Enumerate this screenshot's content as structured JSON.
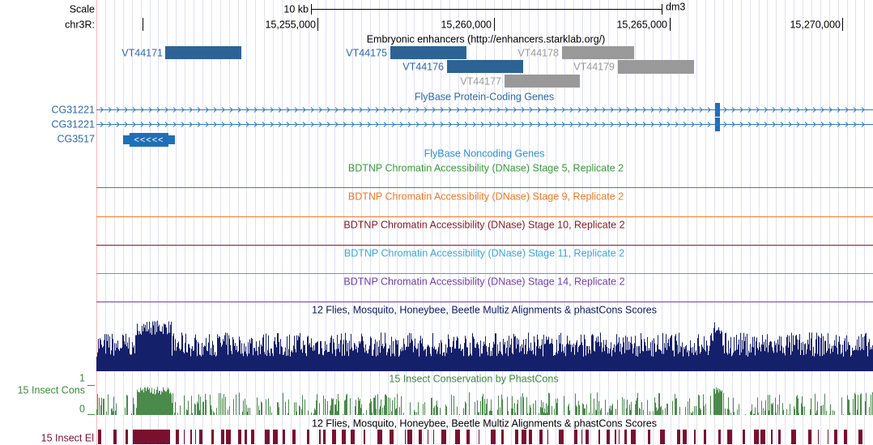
{
  "ruler": {
    "scale_label": "Scale",
    "scale_size": "10 kb",
    "assembly": "dm3",
    "chrom": "chr3R:",
    "positions": [
      "15,255,000",
      "15,260,000",
      "15,265,000",
      "15,270,000"
    ]
  },
  "enhancers": {
    "title": "Embryonic enhancers (http://enhancers.starklab.org/)",
    "features": [
      "VT44171",
      "VT44175",
      "VT44178",
      "VT44176",
      "VT44179",
      "VT44177"
    ]
  },
  "protein_genes": {
    "title": "FlyBase Protein-Coding Genes",
    "genes": [
      "CG31221",
      "CG31221",
      "CG3517"
    ]
  },
  "noncoding_genes": {
    "title": "FlyBase Noncoding Genes"
  },
  "dnase": [
    "BDTNP Chromatin Accessibility (DNase) Stage 5, Replicate 2",
    "BDTNP Chromatin Accessibility (DNase) Stage 9, Replicate 2",
    "BDTNP Chromatin Accessibility (DNase) Stage 10, Replicate 2",
    "BDTNP Chromatin Accessibility (DNase) Stage 11, Replicate 2",
    "BDTNP Chromatin Accessibility (DNase) Stage 14, Replicate 2"
  ],
  "multiz": {
    "title": "12 Flies, Mosquito, Honeybee, Beetle Multiz Alignments & phastCons Scores"
  },
  "phastcons": {
    "label": "15 Insect Cons",
    "title": "15 Insect Conservation by PhastCons",
    "scale_max": 1,
    "scale_min": 0
  },
  "elements": {
    "label": "15 Insect El",
    "title": "12 Flies, Mosquito, Honeybee, Beetle Multiz Alignments & phastCons Scores"
  }
}
